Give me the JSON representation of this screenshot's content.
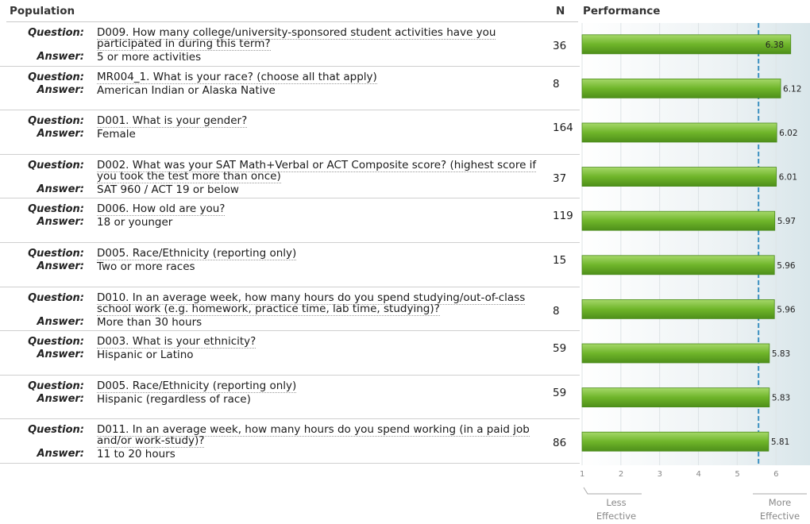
{
  "header": {
    "population": "Population",
    "n": "N",
    "performance": "Performance"
  },
  "labels": {
    "question": "Question:",
    "answer": "Answer:"
  },
  "axis": {
    "less": "Less",
    "less2": "Effective",
    "more": "More",
    "more2": "Effective"
  },
  "chart_data": {
    "type": "bar",
    "orientation": "horizontal",
    "xlim": [
      1,
      7
    ],
    "ticks": [
      1,
      2,
      3,
      4,
      5,
      6
    ],
    "reference_line": 5.55,
    "grid": true,
    "bar_color": "#6fb52a",
    "rows": [
      {
        "question": "D009. How many college/university-sponsored student activities have you participated in during this term?",
        "answer": "5 or more activities",
        "n": "36",
        "value": 6.38,
        "label": "6.38"
      },
      {
        "question": "MR004_1. What is your race? (choose all that apply)",
        "answer": "American Indian or Alaska Native",
        "n": "8",
        "value": 6.12,
        "label": "6.12"
      },
      {
        "question": "D001. What is your gender?",
        "answer": "Female",
        "n": "164",
        "value": 6.02,
        "label": "6.02"
      },
      {
        "question": "D002. What was your SAT Math+Verbal or ACT Composite score? (highest score if you took the test more than once)",
        "answer": "SAT 960 / ACT 19 or below",
        "n": "37",
        "value": 6.01,
        "label": "6.01"
      },
      {
        "question": "D006. How old are you?",
        "answer": "18 or younger",
        "n": "119",
        "value": 5.97,
        "label": "5.97"
      },
      {
        "question": "D005. Race/Ethnicity (reporting only)",
        "answer": "Two or more races",
        "n": "15",
        "value": 5.96,
        "label": "5.96"
      },
      {
        "question": "D010. In an average week, how many hours do you spend studying/out-of-class school work (e.g. homework, practice time, lab time, studying)?",
        "answer": "More than 30 hours",
        "n": "8",
        "value": 5.96,
        "label": "5.96"
      },
      {
        "question": "D003. What is your ethnicity?",
        "answer": "Hispanic or Latino",
        "n": "59",
        "value": 5.83,
        "label": "5.83"
      },
      {
        "question": "D005. Race/Ethnicity (reporting only)",
        "answer": "Hispanic (regardless of race)",
        "n": "59",
        "value": 5.83,
        "label": "5.83"
      },
      {
        "question": "D011. In an average week, how many hours do you spend working (in a paid job and/or work-study)?",
        "answer": "11 to 20 hours",
        "n": "86",
        "value": 5.81,
        "label": "5.81"
      }
    ]
  }
}
